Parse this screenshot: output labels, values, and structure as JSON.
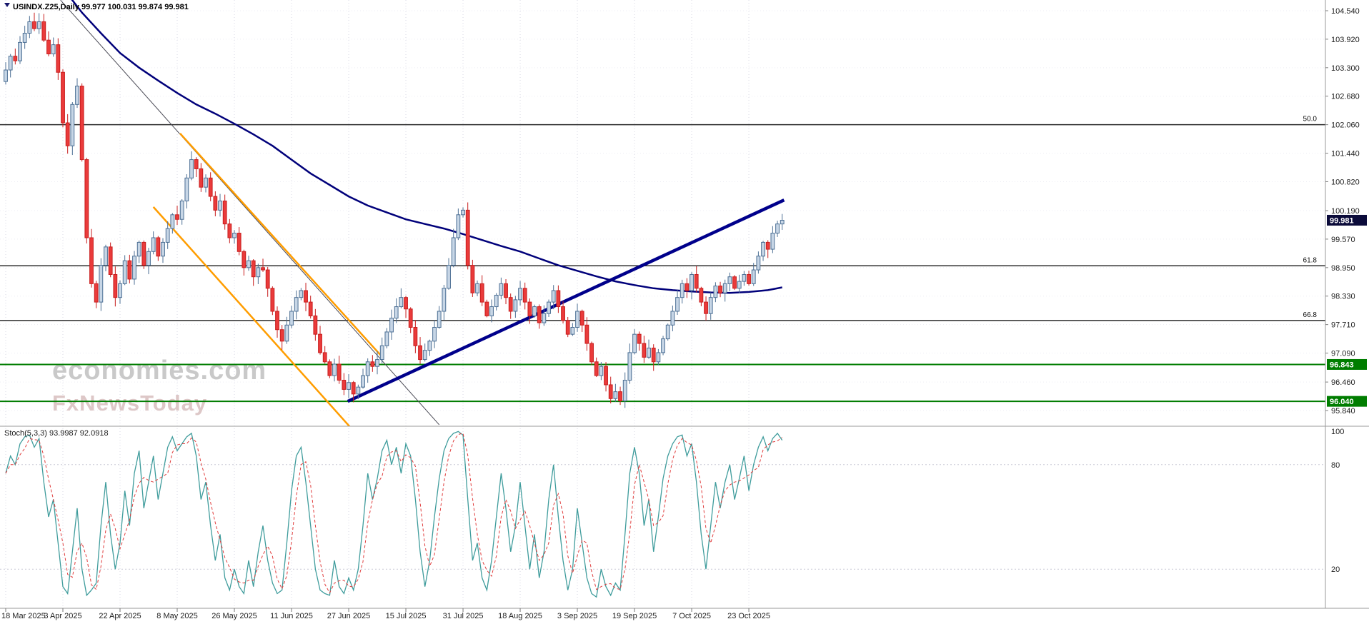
{
  "header": {
    "title_line": "USINDX.Z25,Daily 99.977 100.031 99.874 99.981"
  },
  "watermark": {
    "line1": "economies.com",
    "line2": "FxNewsToday"
  },
  "stoch": {
    "label_line": "Stoch(5,3,3) 93.9987 92.0918"
  },
  "chart_data": {
    "type": "candlestick",
    "symbol": "USINDX.Z25",
    "timeframe": "Daily",
    "ohlc_quote": {
      "open": "99.977",
      "high": "100.031",
      "low": "99.874",
      "close": "99.981"
    },
    "price_axis": {
      "ticks": [
        "104.540",
        "103.920",
        "103.300",
        "102.680",
        "102.060",
        "101.440",
        "100.820",
        "100.190",
        "99.570",
        "98.950",
        "98.330",
        "97.710",
        "97.090",
        "96.460",
        "95.840"
      ],
      "current_badge": {
        "label": "99.981",
        "price": 99.981,
        "bg": "#0b0b3a",
        "fg": "#ffffff"
      }
    },
    "time_axis": {
      "ticks": [
        {
          "i": 0,
          "label": "18 Mar 2025"
        },
        {
          "i": 12,
          "label": "3 Apr 2025"
        },
        {
          "i": 24,
          "label": "22 Apr 2025"
        },
        {
          "i": 36,
          "label": "8 May 2025"
        },
        {
          "i": 48,
          "label": "26 May 2025"
        },
        {
          "i": 60,
          "label": "11 Jun 2025"
        },
        {
          "i": 72,
          "label": "27 Jun 2025"
        },
        {
          "i": 84,
          "label": "15 Jul 2025"
        },
        {
          "i": 96,
          "label": "31 Jul 2025"
        },
        {
          "i": 108,
          "label": "18 Aug 2025"
        },
        {
          "i": 120,
          "label": "3 Sep 2025"
        },
        {
          "i": 132,
          "label": "19 Sep 2025"
        },
        {
          "i": 144,
          "label": "7 Oct 2025"
        },
        {
          "i": 156,
          "label": "23 Oct 2025"
        }
      ]
    },
    "candles": {
      "first_open": 103.0,
      "closes": [
        103.25,
        103.55,
        103.45,
        103.85,
        104.05,
        104.3,
        104.15,
        104.3,
        103.9,
        103.6,
        103.8,
        103.2,
        102.1,
        101.6,
        102.5,
        102.9,
        101.3,
        99.6,
        98.6,
        98.2,
        99.0,
        99.4,
        98.8,
        98.3,
        98.6,
        99.1,
        98.7,
        99.2,
        99.5,
        99.0,
        99.3,
        99.6,
        99.2,
        99.5,
        99.8,
        100.1,
        100.0,
        100.4,
        100.9,
        101.3,
        101.1,
        100.7,
        100.9,
        100.5,
        100.2,
        100.4,
        99.9,
        99.6,
        99.7,
        99.3,
        98.95,
        99.1,
        98.75,
        98.95,
        98.9,
        98.5,
        98.0,
        97.6,
        97.35,
        97.7,
        98.0,
        98.3,
        98.45,
        98.2,
        97.9,
        97.5,
        97.1,
        96.9,
        96.6,
        96.85,
        96.5,
        96.3,
        96.45,
        96.2,
        96.35,
        96.6,
        96.9,
        96.8,
        96.95,
        97.25,
        97.55,
        97.85,
        98.1,
        98.3,
        98.05,
        97.65,
        97.25,
        96.95,
        97.15,
        97.35,
        97.65,
        98.0,
        98.5,
        99.0,
        99.6,
        100.1,
        100.2,
        99.0,
        98.4,
        98.6,
        98.2,
        97.9,
        98.1,
        98.35,
        98.6,
        98.3,
        98.0,
        98.25,
        98.5,
        98.2,
        97.9,
        98.1,
        97.75,
        97.95,
        98.2,
        98.45,
        98.1,
        97.8,
        97.5,
        97.65,
        98.0,
        97.7,
        97.3,
        96.9,
        96.6,
        96.8,
        96.4,
        96.1,
        96.25,
        96.05,
        96.5,
        97.1,
        97.5,
        97.3,
        97.0,
        97.2,
        96.9,
        97.1,
        97.4,
        97.7,
        98.0,
        98.3,
        98.6,
        98.45,
        98.8,
        98.5,
        98.2,
        97.95,
        98.3,
        98.55,
        98.4,
        98.6,
        98.75,
        98.5,
        98.65,
        98.8,
        98.6,
        98.9,
        99.2,
        99.5,
        99.35,
        99.7,
        99.9,
        99.98
      ]
    },
    "ma_points": [
      [
        13,
        104.9
      ],
      [
        16,
        104.5
      ],
      [
        20,
        104.05
      ],
      [
        24,
        103.62
      ],
      [
        28,
        103.3
      ],
      [
        32,
        103.02
      ],
      [
        36,
        102.75
      ],
      [
        40,
        102.5
      ],
      [
        44,
        102.3
      ],
      [
        48,
        102.08
      ],
      [
        52,
        101.85
      ],
      [
        56,
        101.6
      ],
      [
        60,
        101.3
      ],
      [
        64,
        101.0
      ],
      [
        68,
        100.75
      ],
      [
        72,
        100.5
      ],
      [
        76,
        100.3
      ],
      [
        80,
        100.15
      ],
      [
        84,
        100.0
      ],
      [
        88,
        99.9
      ],
      [
        92,
        99.8
      ],
      [
        96,
        99.68
      ],
      [
        100,
        99.55
      ],
      [
        104,
        99.42
      ],
      [
        108,
        99.3
      ],
      [
        112,
        99.15
      ],
      [
        116,
        99.0
      ],
      [
        120,
        98.88
      ],
      [
        124,
        98.76
      ],
      [
        128,
        98.65
      ],
      [
        132,
        98.57
      ],
      [
        136,
        98.5
      ],
      [
        140,
        98.46
      ],
      [
        144,
        98.43
      ],
      [
        148,
        98.41
      ],
      [
        152,
        98.4
      ],
      [
        156,
        98.42
      ],
      [
        160,
        98.46
      ],
      [
        163,
        98.52
      ]
    ],
    "trendlines": [
      {
        "name": "descending-trendline-thin",
        "points": [
          [
            11.5,
            104.77
          ],
          [
            91,
            95.53
          ]
        ],
        "color": "#4a4a55",
        "width": 1
      },
      {
        "name": "channel-line-orange-left",
        "points": [
          [
            31,
            100.27
          ],
          [
            72.3,
            95.48
          ]
        ],
        "color": "#ff9d00",
        "width": 2.5
      },
      {
        "name": "channel-line-orange-right",
        "points": [
          [
            36.6,
            101.87
          ],
          [
            79,
            97.01
          ]
        ],
        "color": "#ff9d00",
        "width": 2.5
      },
      {
        "name": "ascending-trendline-bold",
        "points": [
          [
            71.8,
            96.04
          ],
          [
            163.4,
            100.42
          ]
        ],
        "color": "#00008b",
        "width": 4.5
      }
    ],
    "fib_lines": [
      {
        "price": 102.06,
        "label": "50.0"
      },
      {
        "price": 98.99,
        "label": "61.8"
      },
      {
        "price": 97.8,
        "label": "66.8"
      }
    ],
    "support_lines": [
      {
        "price": 96.843,
        "label": "96.843"
      },
      {
        "price": 96.04,
        "label": "96.040"
      }
    ],
    "stochastic": {
      "k": [
        75,
        85,
        80,
        92,
        96,
        97,
        90,
        95,
        70,
        50,
        60,
        35,
        10,
        6,
        30,
        55,
        20,
        5,
        8,
        12,
        45,
        70,
        40,
        20,
        35,
        65,
        45,
        75,
        88,
        55,
        70,
        85,
        60,
        75,
        90,
        96,
        88,
        92,
        96,
        98,
        85,
        60,
        70,
        45,
        25,
        40,
        15,
        8,
        20,
        10,
        6,
        25,
        10,
        30,
        45,
        25,
        12,
        6,
        8,
        35,
        65,
        85,
        90,
        70,
        45,
        20,
        8,
        6,
        5,
        25,
        10,
        6,
        15,
        8,
        20,
        45,
        75,
        60,
        72,
        88,
        94,
        80,
        90,
        75,
        92,
        85,
        60,
        30,
        10,
        25,
        50,
        72,
        88,
        95,
        98,
        99,
        97,
        60,
        25,
        35,
        15,
        8,
        25,
        50,
        75,
        55,
        30,
        45,
        70,
        45,
        20,
        40,
        15,
        30,
        60,
        80,
        50,
        25,
        8,
        20,
        55,
        35,
        15,
        6,
        4,
        20,
        10,
        5,
        12,
        8,
        40,
        75,
        90,
        75,
        45,
        60,
        30,
        50,
        72,
        85,
        92,
        96,
        97,
        85,
        92,
        70,
        40,
        20,
        45,
        70,
        55,
        70,
        80,
        60,
        72,
        85,
        65,
        80,
        90,
        96,
        88,
        95,
        98,
        94
      ],
      "levels": [
        80,
        20
      ],
      "scale_labels": [
        {
          "v": 100,
          "label": "100"
        },
        {
          "v": 80,
          "label": "80"
        },
        {
          "v": 20,
          "label": "20"
        }
      ],
      "final_k": 93.9987,
      "final_d": 92.0918
    },
    "colors": {
      "bull_fill": "#c7d6e6",
      "bull_stroke": "#4c6f94",
      "bear_fill": "#ea3b3b",
      "bear_stroke": "#c81d1d",
      "ma": "#00007a",
      "stoch_k": "#3f9c9c",
      "stoch_d": "#e03c3c",
      "support": "#007d00",
      "fib": "#2b2b2b"
    }
  }
}
